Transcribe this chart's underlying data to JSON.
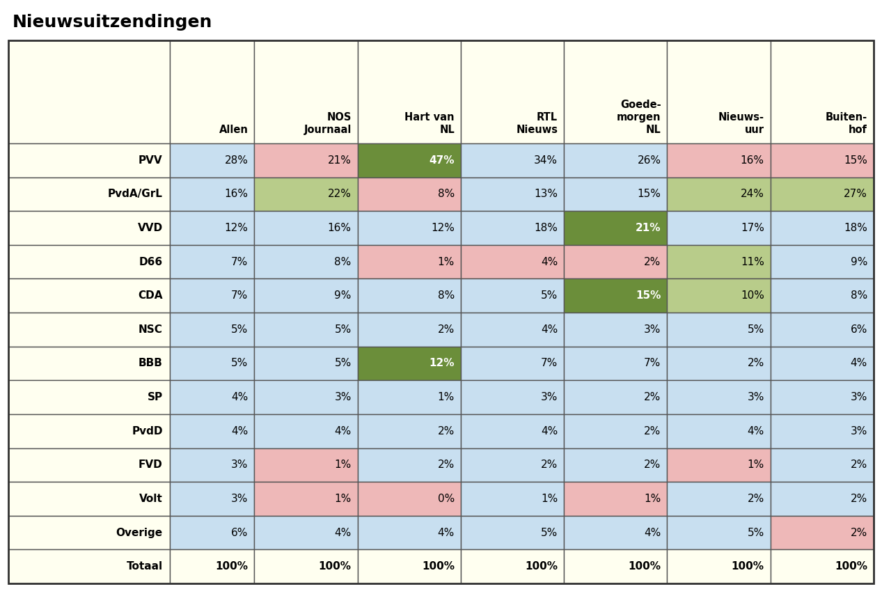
{
  "title": "Nieuwsuitzendingen",
  "col_headers": [
    "",
    "Allen",
    "NOS\nJournaal",
    "Hart van\nNL",
    "RTL\nNieuws",
    "Goede-\nmorgen\nNL",
    "Nieuws-\nuur",
    "Buiten-\nhof"
  ],
  "row_labels": [
    "PVV",
    "PvdA/GrL",
    "VVD",
    "D66",
    "CDA",
    "NSC",
    "BBB",
    "SP",
    "PvdD",
    "FVD",
    "Volt",
    "Overige",
    "Totaal"
  ],
  "allen_values": [
    28,
    16,
    12,
    7,
    7,
    5,
    5,
    4,
    4,
    3,
    3,
    6,
    100
  ],
  "data_values": [
    [
      21,
      47,
      34,
      26,
      16,
      15
    ],
    [
      22,
      8,
      13,
      15,
      24,
      27
    ],
    [
      16,
      12,
      18,
      21,
      17,
      18
    ],
    [
      8,
      1,
      4,
      2,
      11,
      9
    ],
    [
      9,
      8,
      5,
      15,
      10,
      8
    ],
    [
      5,
      2,
      4,
      3,
      5,
      6
    ],
    [
      5,
      12,
      7,
      7,
      2,
      4
    ],
    [
      3,
      1,
      3,
      2,
      3,
      3
    ],
    [
      4,
      2,
      4,
      2,
      4,
      3
    ],
    [
      1,
      2,
      2,
      2,
      1,
      2
    ],
    [
      1,
      0,
      1,
      1,
      2,
      2
    ],
    [
      4,
      4,
      5,
      4,
      5,
      2
    ],
    [
      100,
      100,
      100,
      100,
      100,
      100
    ]
  ],
  "bg_yellow": "#FFFFF0",
  "bg_blue": "#C8DFF0",
  "dark_green": "#6B8E3A",
  "light_green": "#B8CC8A",
  "light_pink": "#EEB8B8",
  "border_dark": "#666666",
  "border_light": "#AAAAAA",
  "cell_colors": [
    [
      "#EEB8B8",
      "#6B8E3A",
      "#C8DFF0",
      "#C8DFF0",
      "#EEB8B8",
      "#EEB8B8"
    ],
    [
      "#B8CC8A",
      "#EEB8B8",
      "#C8DFF0",
      "#C8DFF0",
      "#B8CC8A",
      "#B8CC8A"
    ],
    [
      "#C8DFF0",
      "#C8DFF0",
      "#C8DFF0",
      "#6B8E3A",
      "#C8DFF0",
      "#C8DFF0"
    ],
    [
      "#C8DFF0",
      "#EEB8B8",
      "#EEB8B8",
      "#EEB8B8",
      "#B8CC8A",
      "#C8DFF0"
    ],
    [
      "#C8DFF0",
      "#C8DFF0",
      "#C8DFF0",
      "#6B8E3A",
      "#B8CC8A",
      "#C8DFF0"
    ],
    [
      "#C8DFF0",
      "#C8DFF0",
      "#C8DFF0",
      "#C8DFF0",
      "#C8DFF0",
      "#C8DFF0"
    ],
    [
      "#C8DFF0",
      "#6B8E3A",
      "#C8DFF0",
      "#C8DFF0",
      "#C8DFF0",
      "#C8DFF0"
    ],
    [
      "#C8DFF0",
      "#C8DFF0",
      "#C8DFF0",
      "#C8DFF0",
      "#C8DFF0",
      "#C8DFF0"
    ],
    [
      "#C8DFF0",
      "#C8DFF0",
      "#C8DFF0",
      "#C8DFF0",
      "#C8DFF0",
      "#C8DFF0"
    ],
    [
      "#EEB8B8",
      "#C8DFF0",
      "#C8DFF0",
      "#C8DFF0",
      "#EEB8B8",
      "#C8DFF0"
    ],
    [
      "#EEB8B8",
      "#EEB8B8",
      "#C8DFF0",
      "#EEB8B8",
      "#C8DFF0",
      "#C8DFF0"
    ],
    [
      "#C8DFF0",
      "#C8DFF0",
      "#C8DFF0",
      "#C8DFF0",
      "#C8DFF0",
      "#EEB8B8"
    ],
    [
      "#FFFFF0",
      "#FFFFF0",
      "#FFFFF0",
      "#FFFFF0",
      "#FFFFF0",
      "#FFFFF0"
    ]
  ]
}
